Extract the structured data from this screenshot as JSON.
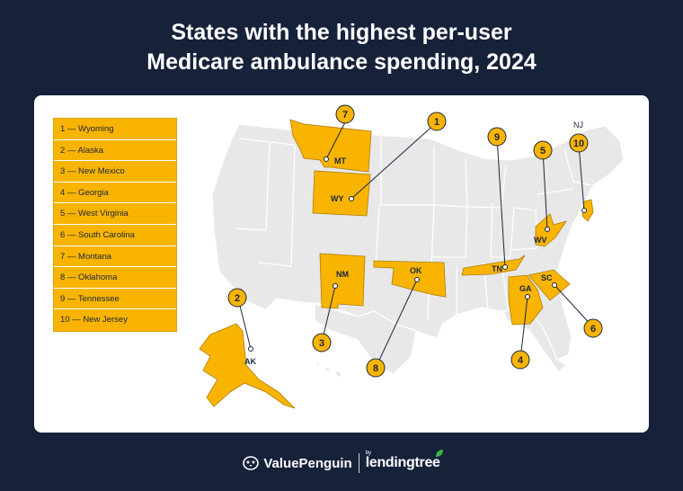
{
  "title_line1": "States with the highest per-user",
  "title_line2": "Medicare ambulance spending, 2024",
  "legend": [
    "1 — Wyoming",
    "2 — Alaska",
    "3 — New Mexico",
    "4 — Georgia",
    "5 — West Virginia",
    "6 — South Carolina",
    "7 — Montana",
    "8 — Oklahoma",
    "9 — Tennessee",
    "10 — New Jersey"
  ],
  "markers": [
    {
      "rank": "1",
      "abbr": "WY"
    },
    {
      "rank": "2",
      "abbr": "AK"
    },
    {
      "rank": "3",
      "abbr": "NM"
    },
    {
      "rank": "4",
      "abbr": "GA"
    },
    {
      "rank": "5",
      "abbr": "WV"
    },
    {
      "rank": "6",
      "abbr": "SC"
    },
    {
      "rank": "7",
      "abbr": "MT"
    },
    {
      "rank": "8",
      "abbr": "OK"
    },
    {
      "rank": "9",
      "abbr": "TN"
    },
    {
      "rank": "10",
      "abbr": "NJ"
    }
  ],
  "colors": {
    "background": "#16213a",
    "highlight": "#f8b400",
    "state_default": "#e8e8e8",
    "text_dark": "#1b2540"
  },
  "footer": {
    "brand1": "ValuePenguin",
    "by": "by",
    "brand2": "lendingtree"
  }
}
